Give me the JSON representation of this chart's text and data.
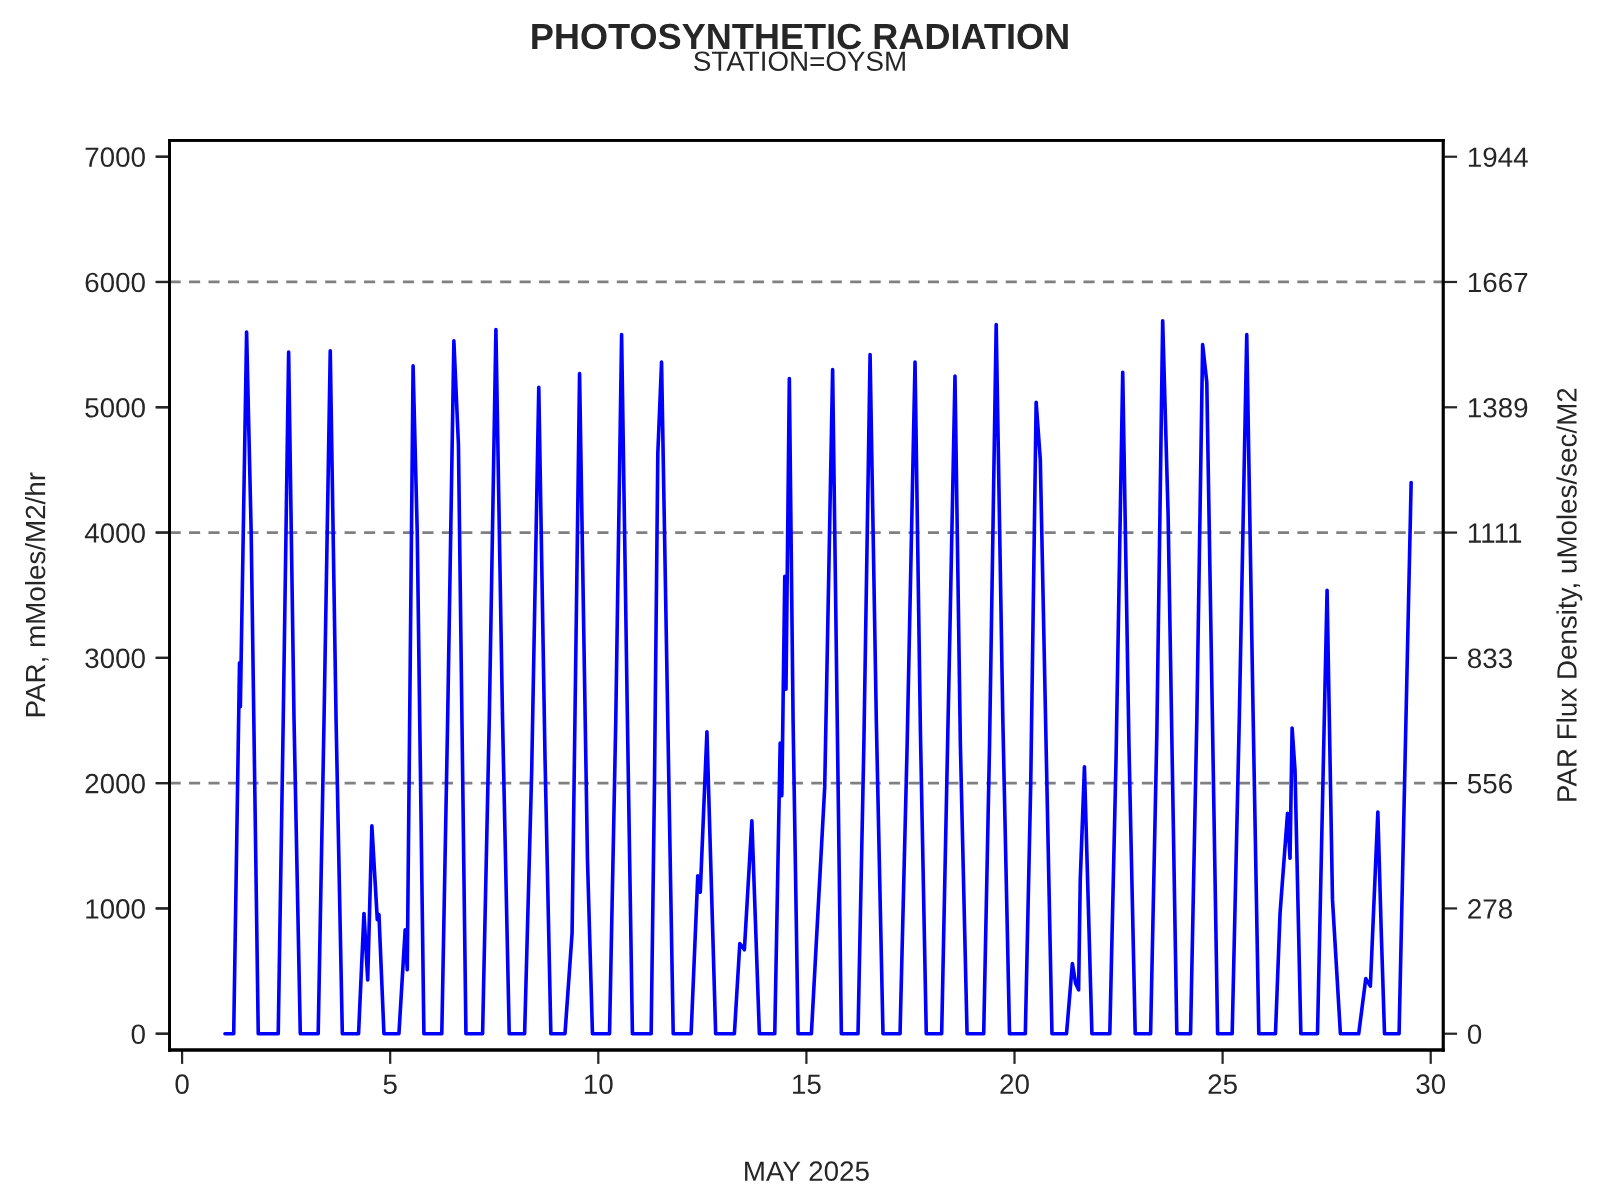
{
  "chart_data": {
    "type": "line",
    "title": "PHOTOSYNTHETIC RADIATION",
    "subtitle": "STATION=OYSM",
    "xlabel": "MAY 2025",
    "ylabel": "PAR, mMoles/M2/hr",
    "y2label": "PAR Flux Density, uMoles/sec/M2",
    "xlim": [
      -0.3,
      30.3
    ],
    "xticks": [
      0,
      5,
      10,
      15,
      20,
      25,
      30
    ],
    "ylim": [
      -130,
      7130
    ],
    "yticks": [
      0,
      1000,
      2000,
      3000,
      4000,
      5000,
      6000,
      7000
    ],
    "y2lim": [
      -36.1,
      1980.6
    ],
    "y2ticks": [
      0,
      {
        "value": 277.8,
        "label": "278"
      },
      {
        "value": 555.6,
        "label": "556"
      },
      {
        "value": 833.3,
        "label": "833"
      },
      {
        "value": 1111.1,
        "label": "1111"
      },
      {
        "value": 1388.9,
        "label": "1389"
      },
      {
        "value": 1666.7,
        "label": "1667"
      },
      {
        "value": 1944.4,
        "label": "1944"
      }
    ],
    "grid": false,
    "legend": false,
    "marker": "none",
    "line_style": "solid",
    "ref_lines": [
      {
        "axis": "y",
        "value": 2000,
        "color": "#808080",
        "line_style": "dashed"
      },
      {
        "axis": "y",
        "value": 4000,
        "color": "#808080",
        "line_style": "dashed"
      },
      {
        "axis": "y",
        "value": 6000,
        "color": "#808080",
        "line_style": "dashed"
      }
    ],
    "series": [
      {
        "color": "#0000ff",
        "x": [
          1.03,
          1.24,
          1.38,
          1.4,
          1.55,
          1.66,
          1.83,
          2.31,
          2.43,
          2.56,
          2.69,
          2.84,
          3.27,
          3.41,
          3.56,
          3.7,
          3.85,
          4.24,
          4.37,
          4.46,
          4.56,
          4.69,
          4.73,
          4.85,
          5.21,
          5.36,
          5.41,
          5.55,
          5.65,
          5.81,
          6.24,
          6.38,
          6.53,
          6.64,
          6.82,
          7.22,
          7.38,
          7.54,
          7.7,
          7.86,
          8.23,
          8.4,
          8.57,
          8.72,
          8.86,
          9.2,
          9.37,
          9.55,
          9.74,
          9.86,
          10.27,
          10.42,
          10.56,
          10.7,
          10.82,
          11.27,
          11.35,
          11.43,
          11.52,
          11.8,
          12.23,
          12.39,
          12.45,
          12.61,
          12.82,
          13.27,
          13.4,
          13.51,
          13.69,
          13.87,
          14.24,
          14.37,
          14.41,
          14.48,
          14.51,
          14.59,
          14.68,
          14.8,
          15.12,
          15.44,
          15.63,
          15.84,
          16.24,
          16.38,
          16.53,
          16.68,
          16.84,
          17.25,
          17.42,
          17.61,
          17.74,
          17.88,
          18.25,
          18.45,
          18.57,
          18.7,
          18.86,
          19.26,
          19.4,
          19.56,
          19.72,
          19.88,
          20.26,
          20.39,
          20.52,
          20.62,
          20.9,
          21.25,
          21.39,
          21.47,
          21.54,
          21.58,
          21.68,
          21.86,
          22.29,
          22.44,
          22.6,
          22.75,
          22.9,
          23.27,
          23.42,
          23.56,
          23.69,
          23.9,
          24.23,
          24.38,
          24.52,
          24.62,
          24.75,
          24.88,
          25.23,
          25.4,
          25.58,
          25.73,
          25.87,
          26.27,
          26.38,
          26.56,
          26.62,
          26.67,
          26.74,
          26.88,
          27.28,
          27.41,
          27.51,
          27.64,
          27.83,
          28.27,
          28.44,
          28.55,
          28.73,
          28.81,
          28.89,
          29.24,
          29.53
        ],
        "values": [
          0,
          0,
          2960,
          2610,
          5600,
          4000,
          0,
          0,
          2500,
          5440,
          2500,
          0,
          0,
          2500,
          5450,
          2500,
          0,
          0,
          960,
          430,
          1660,
          910,
          950,
          0,
          0,
          830,
          510,
          5330,
          4000,
          0,
          0,
          2500,
          5530,
          4700,
          0,
          0,
          2500,
          5620,
          2500,
          0,
          0,
          2100,
          5160,
          2200,
          0,
          0,
          800,
          5270,
          1390,
          0,
          0,
          2500,
          5580,
          2500,
          0,
          0,
          2000,
          4630,
          5360,
          0,
          0,
          1260,
          1130,
          2410,
          0,
          0,
          720,
          670,
          1700,
          0,
          0,
          2320,
          1900,
          3650,
          2750,
          5230,
          2500,
          0,
          0,
          1970,
          5300,
          0,
          0,
          2300,
          5420,
          2500,
          0,
          0,
          2300,
          5360,
          2400,
          0,
          0,
          3250,
          5250,
          2300,
          0,
          0,
          2300,
          5660,
          2500,
          0,
          0,
          2000,
          5040,
          4580,
          0,
          0,
          560,
          400,
          350,
          1230,
          2130,
          0,
          0,
          2200,
          5280,
          2300,
          0,
          0,
          2400,
          5690,
          4150,
          0,
          0,
          2500,
          5500,
          5200,
          2610,
          0,
          0,
          2500,
          5580,
          2600,
          0,
          0,
          960,
          1760,
          1400,
          2440,
          2100,
          0,
          0,
          2000,
          3540,
          1070,
          0,
          0,
          440,
          380,
          1770,
          830,
          0,
          0,
          4400
        ]
      }
    ]
  }
}
